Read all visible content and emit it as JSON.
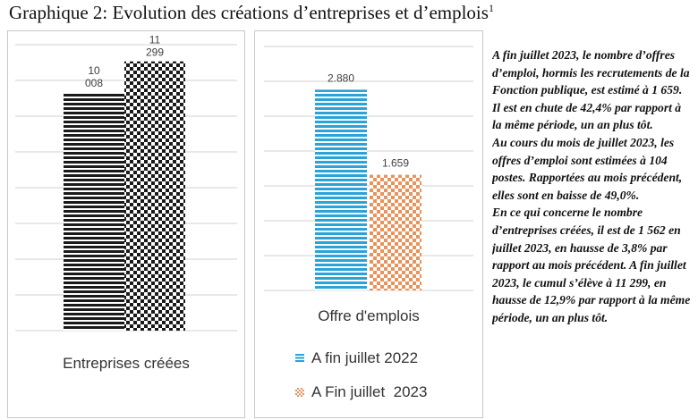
{
  "title": {
    "text": "Graphique 2: Evolution des créations d’entreprises et d’emplois",
    "footnote": "1"
  },
  "chart_data": [
    {
      "type": "bar",
      "categories": [
        "Entreprises créées"
      ],
      "series": [
        {
          "name": "A fin juillet 2022",
          "values": [
            10008
          ],
          "label_lines": [
            "10",
            "008"
          ]
        },
        {
          "name": "A Fin juillet  2023",
          "values": [
            11299
          ],
          "label_lines": [
            "11",
            "299"
          ]
        }
      ],
      "ylim": [
        0,
        12000
      ],
      "grid": true,
      "colors": [
        "#1a1a1a",
        "#1a1a1a"
      ],
      "patterns": [
        "horizontal-stripes",
        "checkerboard"
      ],
      "legend": "shown in second chart"
    },
    {
      "type": "bar",
      "categories": [
        "Offre d'emplois"
      ],
      "series": [
        {
          "name": "A fin juillet 2022",
          "values": [
            2880
          ],
          "label": "2.880"
        },
        {
          "name": "A Fin juillet  2023",
          "values": [
            1659
          ],
          "label": "1.659"
        }
      ],
      "ylim": [
        0,
        3500
      ],
      "grid": true,
      "colors": [
        "#2aa3d8",
        "#e8935c"
      ],
      "patterns": [
        "horizontal-stripes",
        "checkerboard"
      ],
      "legend": "bottom"
    }
  ],
  "commentary": [
    "A fin juillet 2023, le nombre d’offres d’emploi, hormis les recrutements de la Fonction publique, est estimé à 1 659. Il est en chute de 42,4% par rapport à la même période, un an plus tôt.",
    "Au cours du mois de juillet 2023, les offres d’emploi sont estimées à 104 postes. Rapportées au mois précédent, elles sont en baisse de 49,0%.",
    "En ce qui concerne le nombre d’entreprises créées, il est de 1 562 en juillet 2023, en hausse de 3,8% par rapport au mois précédent. A fin juillet 2023, le cumul s’élève à 11 299, en hausse de 12,9% par rapport à la même période, un an plus tôt."
  ]
}
